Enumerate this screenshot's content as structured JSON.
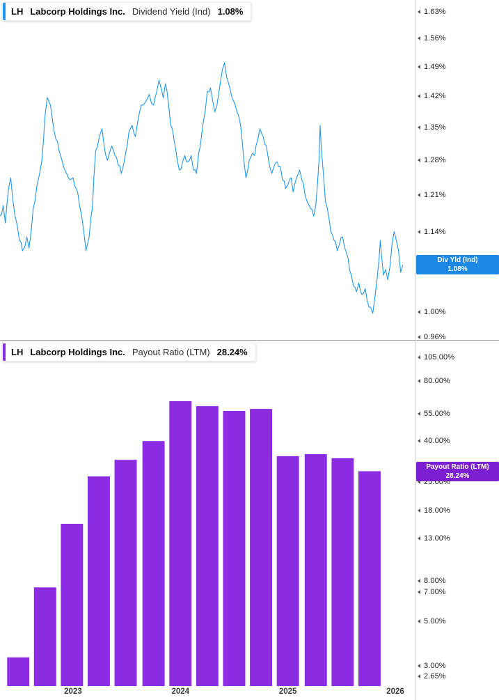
{
  "panels": [
    {
      "legend": {
        "ticker": "LH",
        "company": "Labcorp Holdings Inc.",
        "metric": "Dividend Yield (Ind)",
        "value": "1.08%"
      },
      "badge": {
        "title": "Div Yld (Ind)",
        "value": "1.08%"
      },
      "colors": {
        "series": "#2196F3",
        "badge": "#1E88E5"
      },
      "axis_ticks": [
        "1.63%",
        "1.56%",
        "1.49%",
        "1.42%",
        "1.35%",
        "1.28%",
        "1.21%",
        "1.14%",
        "1.07%",
        "1.00%",
        "0.96%"
      ]
    },
    {
      "legend": {
        "ticker": "LH",
        "company": "Labcorp Holdings Inc.",
        "metric": "Payout Ratio (LTM)",
        "value": "28.24%"
      },
      "badge": {
        "title": "Payout Ratio (LTM)",
        "value": "28.24%"
      },
      "colors": {
        "series": "#8B2BE2",
        "badge": "#7C1FD1"
      },
      "axis_ticks": [
        "105.00%",
        "80.00%",
        "55.00%",
        "40.00%",
        "25.00%",
        "18.00%",
        "13.00%",
        "8.00%",
        "7.00%",
        "5.00%",
        "3.00%",
        "2.65%"
      ]
    }
  ],
  "x_axis": {
    "labels": [
      "2023",
      "2024",
      "2025",
      "2026"
    ]
  },
  "chart_data": [
    {
      "type": "line",
      "title": "Labcorp Holdings Inc. Dividend Yield (Ind)",
      "series_name": "Dividend Yield (Ind)",
      "unit": "%",
      "current_value": 1.08,
      "y_scale": "log",
      "grid": false,
      "legend_position": "top-left",
      "x_range": [
        2022.32,
        2026.07
      ],
      "y_log_range": [
        0.956,
        1.661
      ],
      "noise_amplitude": 0.012,
      "points": [
        [
          2022.32,
          1.169
        ],
        [
          2022.35,
          1.189
        ],
        [
          2022.37,
          1.156
        ],
        [
          2022.4,
          1.223
        ],
        [
          2022.42,
          1.244
        ],
        [
          2022.44,
          1.2
        ],
        [
          2022.46,
          1.169
        ],
        [
          2022.5,
          1.124
        ],
        [
          2022.53,
          1.105
        ],
        [
          2022.57,
          1.13
        ],
        [
          2022.59,
          1.11
        ],
        [
          2022.63,
          1.184
        ],
        [
          2022.68,
          1.244
        ],
        [
          2022.71,
          1.28
        ],
        [
          2022.74,
          1.378
        ],
        [
          2022.76,
          1.417
        ],
        [
          2022.79,
          1.4
        ],
        [
          2022.81,
          1.365
        ],
        [
          2022.84,
          1.324
        ],
        [
          2022.87,
          1.3
        ],
        [
          2022.9,
          1.277
        ],
        [
          2022.94,
          1.253
        ],
        [
          2022.97,
          1.24
        ],
        [
          2023.0,
          1.244
        ],
        [
          2023.03,
          1.223
        ],
        [
          2023.06,
          1.19
        ],
        [
          2023.1,
          1.14
        ],
        [
          2023.12,
          1.105
        ],
        [
          2023.15,
          1.13
        ],
        [
          2023.18,
          1.184
        ],
        [
          2023.21,
          1.3
        ],
        [
          2023.24,
          1.324
        ],
        [
          2023.27,
          1.347
        ],
        [
          2023.29,
          1.31
        ],
        [
          2023.32,
          1.28
        ],
        [
          2023.36,
          1.31
        ],
        [
          2023.39,
          1.29
        ],
        [
          2023.42,
          1.27
        ],
        [
          2023.45,
          1.253
        ],
        [
          2023.49,
          1.295
        ],
        [
          2023.52,
          1.34
        ],
        [
          2023.55,
          1.355
        ],
        [
          2023.58,
          1.33
        ],
        [
          2023.62,
          1.385
        ],
        [
          2023.65,
          1.4
        ],
        [
          2023.68,
          1.41
        ],
        [
          2023.71,
          1.425
        ],
        [
          2023.75,
          1.4
        ],
        [
          2023.78,
          1.432
        ],
        [
          2023.8,
          1.458
        ],
        [
          2023.82,
          1.44
        ],
        [
          2023.84,
          1.417
        ],
        [
          2023.86,
          1.45
        ],
        [
          2023.89,
          1.4
        ],
        [
          2023.91,
          1.355
        ],
        [
          2023.94,
          1.324
        ],
        [
          2023.97,
          1.28
        ],
        [
          2023.99,
          1.26
        ],
        [
          2024.02,
          1.277
        ],
        [
          2024.04,
          1.29
        ],
        [
          2024.07,
          1.277
        ],
        [
          2024.1,
          1.29
        ],
        [
          2024.12,
          1.26
        ],
        [
          2024.15,
          1.253
        ],
        [
          2024.17,
          1.295
        ],
        [
          2024.2,
          1.34
        ],
        [
          2024.23,
          1.385
        ],
        [
          2024.25,
          1.432
        ],
        [
          2024.28,
          1.44
        ],
        [
          2024.3,
          1.41
        ],
        [
          2024.32,
          1.385
        ],
        [
          2024.34,
          1.4
        ],
        [
          2024.37,
          1.45
        ],
        [
          2024.39,
          1.483
        ],
        [
          2024.41,
          1.5
        ],
        [
          2024.43,
          1.465
        ],
        [
          2024.46,
          1.44
        ],
        [
          2024.48,
          1.417
        ],
        [
          2024.51,
          1.4
        ],
        [
          2024.54,
          1.378
        ],
        [
          2024.56,
          1.355
        ],
        [
          2024.59,
          1.28
        ],
        [
          2024.61,
          1.244
        ],
        [
          2024.64,
          1.28
        ],
        [
          2024.67,
          1.295
        ],
        [
          2024.69,
          1.29
        ],
        [
          2024.72,
          1.324
        ],
        [
          2024.74,
          1.347
        ],
        [
          2024.77,
          1.33
        ],
        [
          2024.8,
          1.31
        ],
        [
          2024.82,
          1.28
        ],
        [
          2024.85,
          1.253
        ],
        [
          2024.87,
          1.267
        ],
        [
          2024.9,
          1.277
        ],
        [
          2024.93,
          1.267
        ],
        [
          2024.95,
          1.24
        ],
        [
          2024.98,
          1.223
        ],
        [
          2025.0,
          1.23
        ],
        [
          2025.03,
          1.244
        ],
        [
          2025.05,
          1.216
        ],
        [
          2025.08,
          1.244
        ],
        [
          2025.11,
          1.26
        ],
        [
          2025.13,
          1.24
        ],
        [
          2025.16,
          1.21
        ],
        [
          2025.18,
          1.196
        ],
        [
          2025.21,
          1.184
        ],
        [
          2025.24,
          1.169
        ],
        [
          2025.26,
          1.19
        ],
        [
          2025.29,
          1.28
        ],
        [
          2025.3,
          1.355
        ],
        [
          2025.31,
          1.31
        ],
        [
          2025.33,
          1.253
        ],
        [
          2025.35,
          1.196
        ],
        [
          2025.38,
          1.169
        ],
        [
          2025.4,
          1.14
        ],
        [
          2025.43,
          1.124
        ],
        [
          2025.46,
          1.105
        ],
        [
          2025.48,
          1.117
        ],
        [
          2025.51,
          1.13
        ],
        [
          2025.53,
          1.11
        ],
        [
          2025.56,
          1.092
        ],
        [
          2025.59,
          1.062
        ],
        [
          2025.61,
          1.044
        ],
        [
          2025.64,
          1.034
        ],
        [
          2025.66,
          1.049
        ],
        [
          2025.69,
          1.029
        ],
        [
          2025.72,
          1.039
        ],
        [
          2025.74,
          1.018
        ],
        [
          2025.77,
          1.008
        ],
        [
          2025.79,
          0.998
        ],
        [
          2025.81,
          1.024
        ],
        [
          2025.83,
          1.054
        ],
        [
          2025.85,
          1.092
        ],
        [
          2025.86,
          1.124
        ],
        [
          2025.87,
          1.1
        ],
        [
          2025.89,
          1.062
        ],
        [
          2025.91,
          1.072
        ],
        [
          2025.93,
          1.054
        ],
        [
          2025.95,
          1.077
        ],
        [
          2025.97,
          1.117
        ],
        [
          2025.99,
          1.14
        ],
        [
          2026.01,
          1.124
        ],
        [
          2026.03,
          1.105
        ],
        [
          2026.05,
          1.067
        ],
        [
          2026.07,
          1.08
        ]
      ]
    },
    {
      "type": "bar",
      "title": "Labcorp Holdings Inc. Payout Ratio (LTM)",
      "series_name": "Payout Ratio (LTM)",
      "unit": "%",
      "current_value": 28.24,
      "y_scale": "log",
      "grid": false,
      "legend_position": "top-left",
      "x_range": [
        2022.32,
        2026.07
      ],
      "y_log_range": [
        2.37,
        128.4
      ],
      "bar_width_years": 0.207,
      "x": [
        2022.49,
        2022.74,
        2022.99,
        2023.24,
        2023.49,
        2023.75,
        2024.0,
        2024.25,
        2024.5,
        2024.75,
        2025.0,
        2025.26,
        2025.51,
        2025.76
      ],
      "values": [
        3.3,
        7.4,
        15.4,
        26.6,
        32.2,
        40.0,
        63.3,
        59.8,
        56.6,
        57.9,
        33.6,
        34.4,
        32.8,
        28.24
      ]
    }
  ]
}
